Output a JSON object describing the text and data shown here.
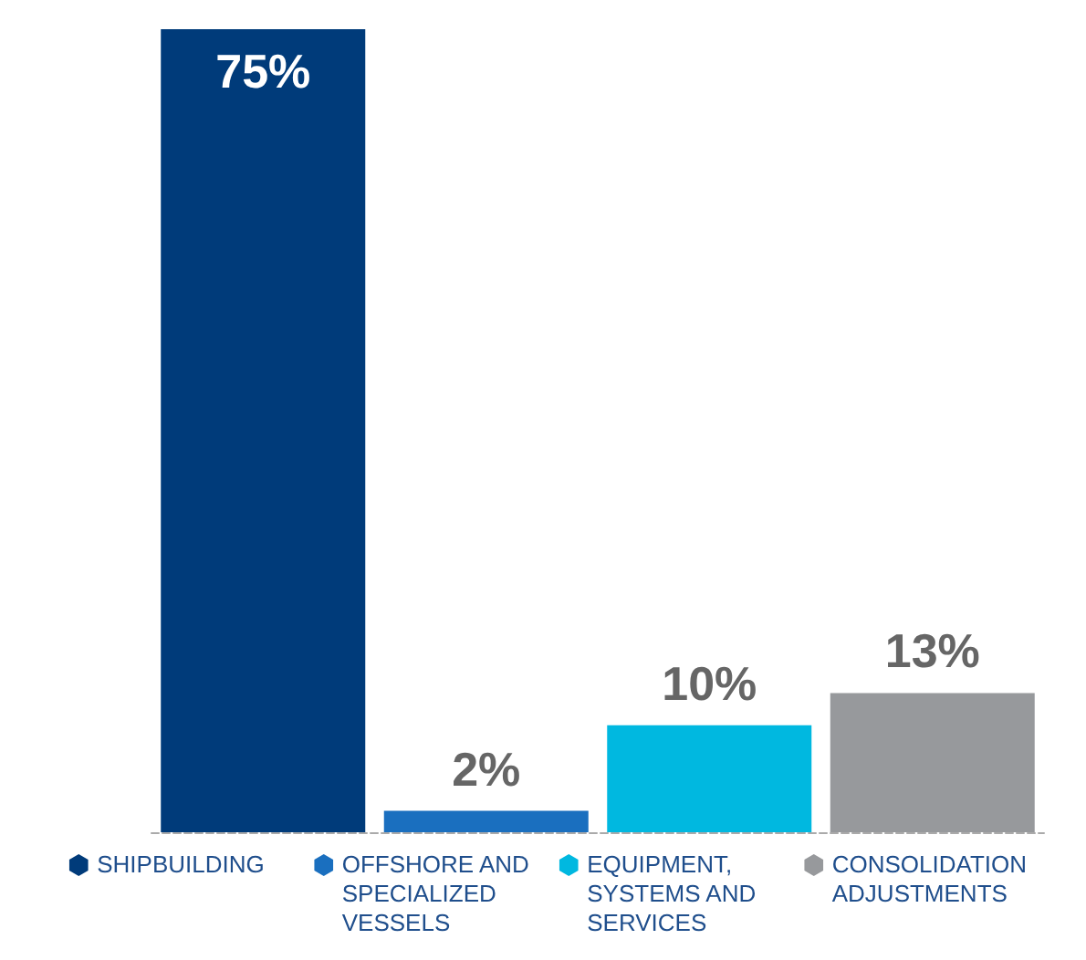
{
  "chart_data": {
    "type": "bar",
    "categories": [
      "SHIPBUILDING",
      "OFFSHORE AND SPECIALIZED VESSELS",
      "EQUIPMENT, SYSTEMS AND SERVICES",
      "CONSOLIDATION ADJUSTMENTS"
    ],
    "values": [
      75,
      2,
      10,
      13
    ],
    "colors": [
      "#003b7a",
      "#1a6fbf",
      "#00b8e0",
      "#97999c"
    ],
    "value_labels": [
      "75%",
      "2%",
      "10%",
      "13%"
    ],
    "tick_labels": "x",
    "grid": false
  }
}
